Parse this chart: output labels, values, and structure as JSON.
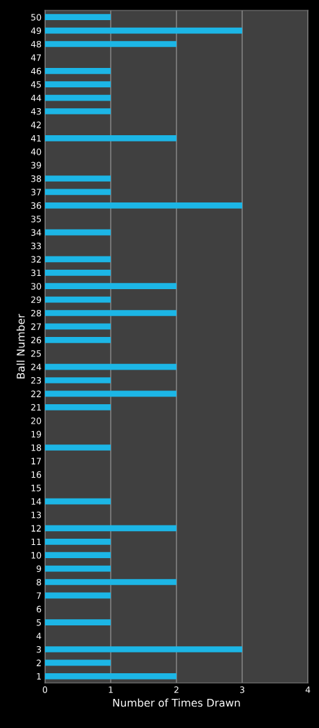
{
  "chart_data": {
    "type": "bar",
    "orientation": "horizontal",
    "categories": [
      "50",
      "49",
      "48",
      "47",
      "46",
      "45",
      "44",
      "43",
      "42",
      "41",
      "40",
      "39",
      "38",
      "37",
      "36",
      "35",
      "34",
      "33",
      "32",
      "31",
      "30",
      "29",
      "28",
      "27",
      "26",
      "25",
      "24",
      "23",
      "22",
      "21",
      "20",
      "19",
      "18",
      "17",
      "16",
      "15",
      "14",
      "13",
      "12",
      "11",
      "10",
      "9",
      "8",
      "7",
      "6",
      "5",
      "4",
      "3",
      "2",
      "1"
    ],
    "values": [
      1,
      3,
      2,
      0,
      1,
      1,
      1,
      1,
      0,
      2,
      0,
      0,
      1,
      1,
      3,
      0,
      1,
      0,
      1,
      1,
      2,
      1,
      2,
      1,
      1,
      0,
      2,
      1,
      2,
      1,
      0,
      0,
      1,
      0,
      0,
      0,
      1,
      0,
      2,
      1,
      1,
      1,
      2,
      1,
      0,
      1,
      0,
      3,
      1,
      2
    ],
    "color": "#1cb6e6",
    "xlabel": "Number of Times Drawn",
    "ylabel": "Ball Number",
    "xlim": [
      0,
      4
    ],
    "xticks": [
      0,
      1,
      2,
      3,
      4
    ],
    "grid": "x"
  }
}
